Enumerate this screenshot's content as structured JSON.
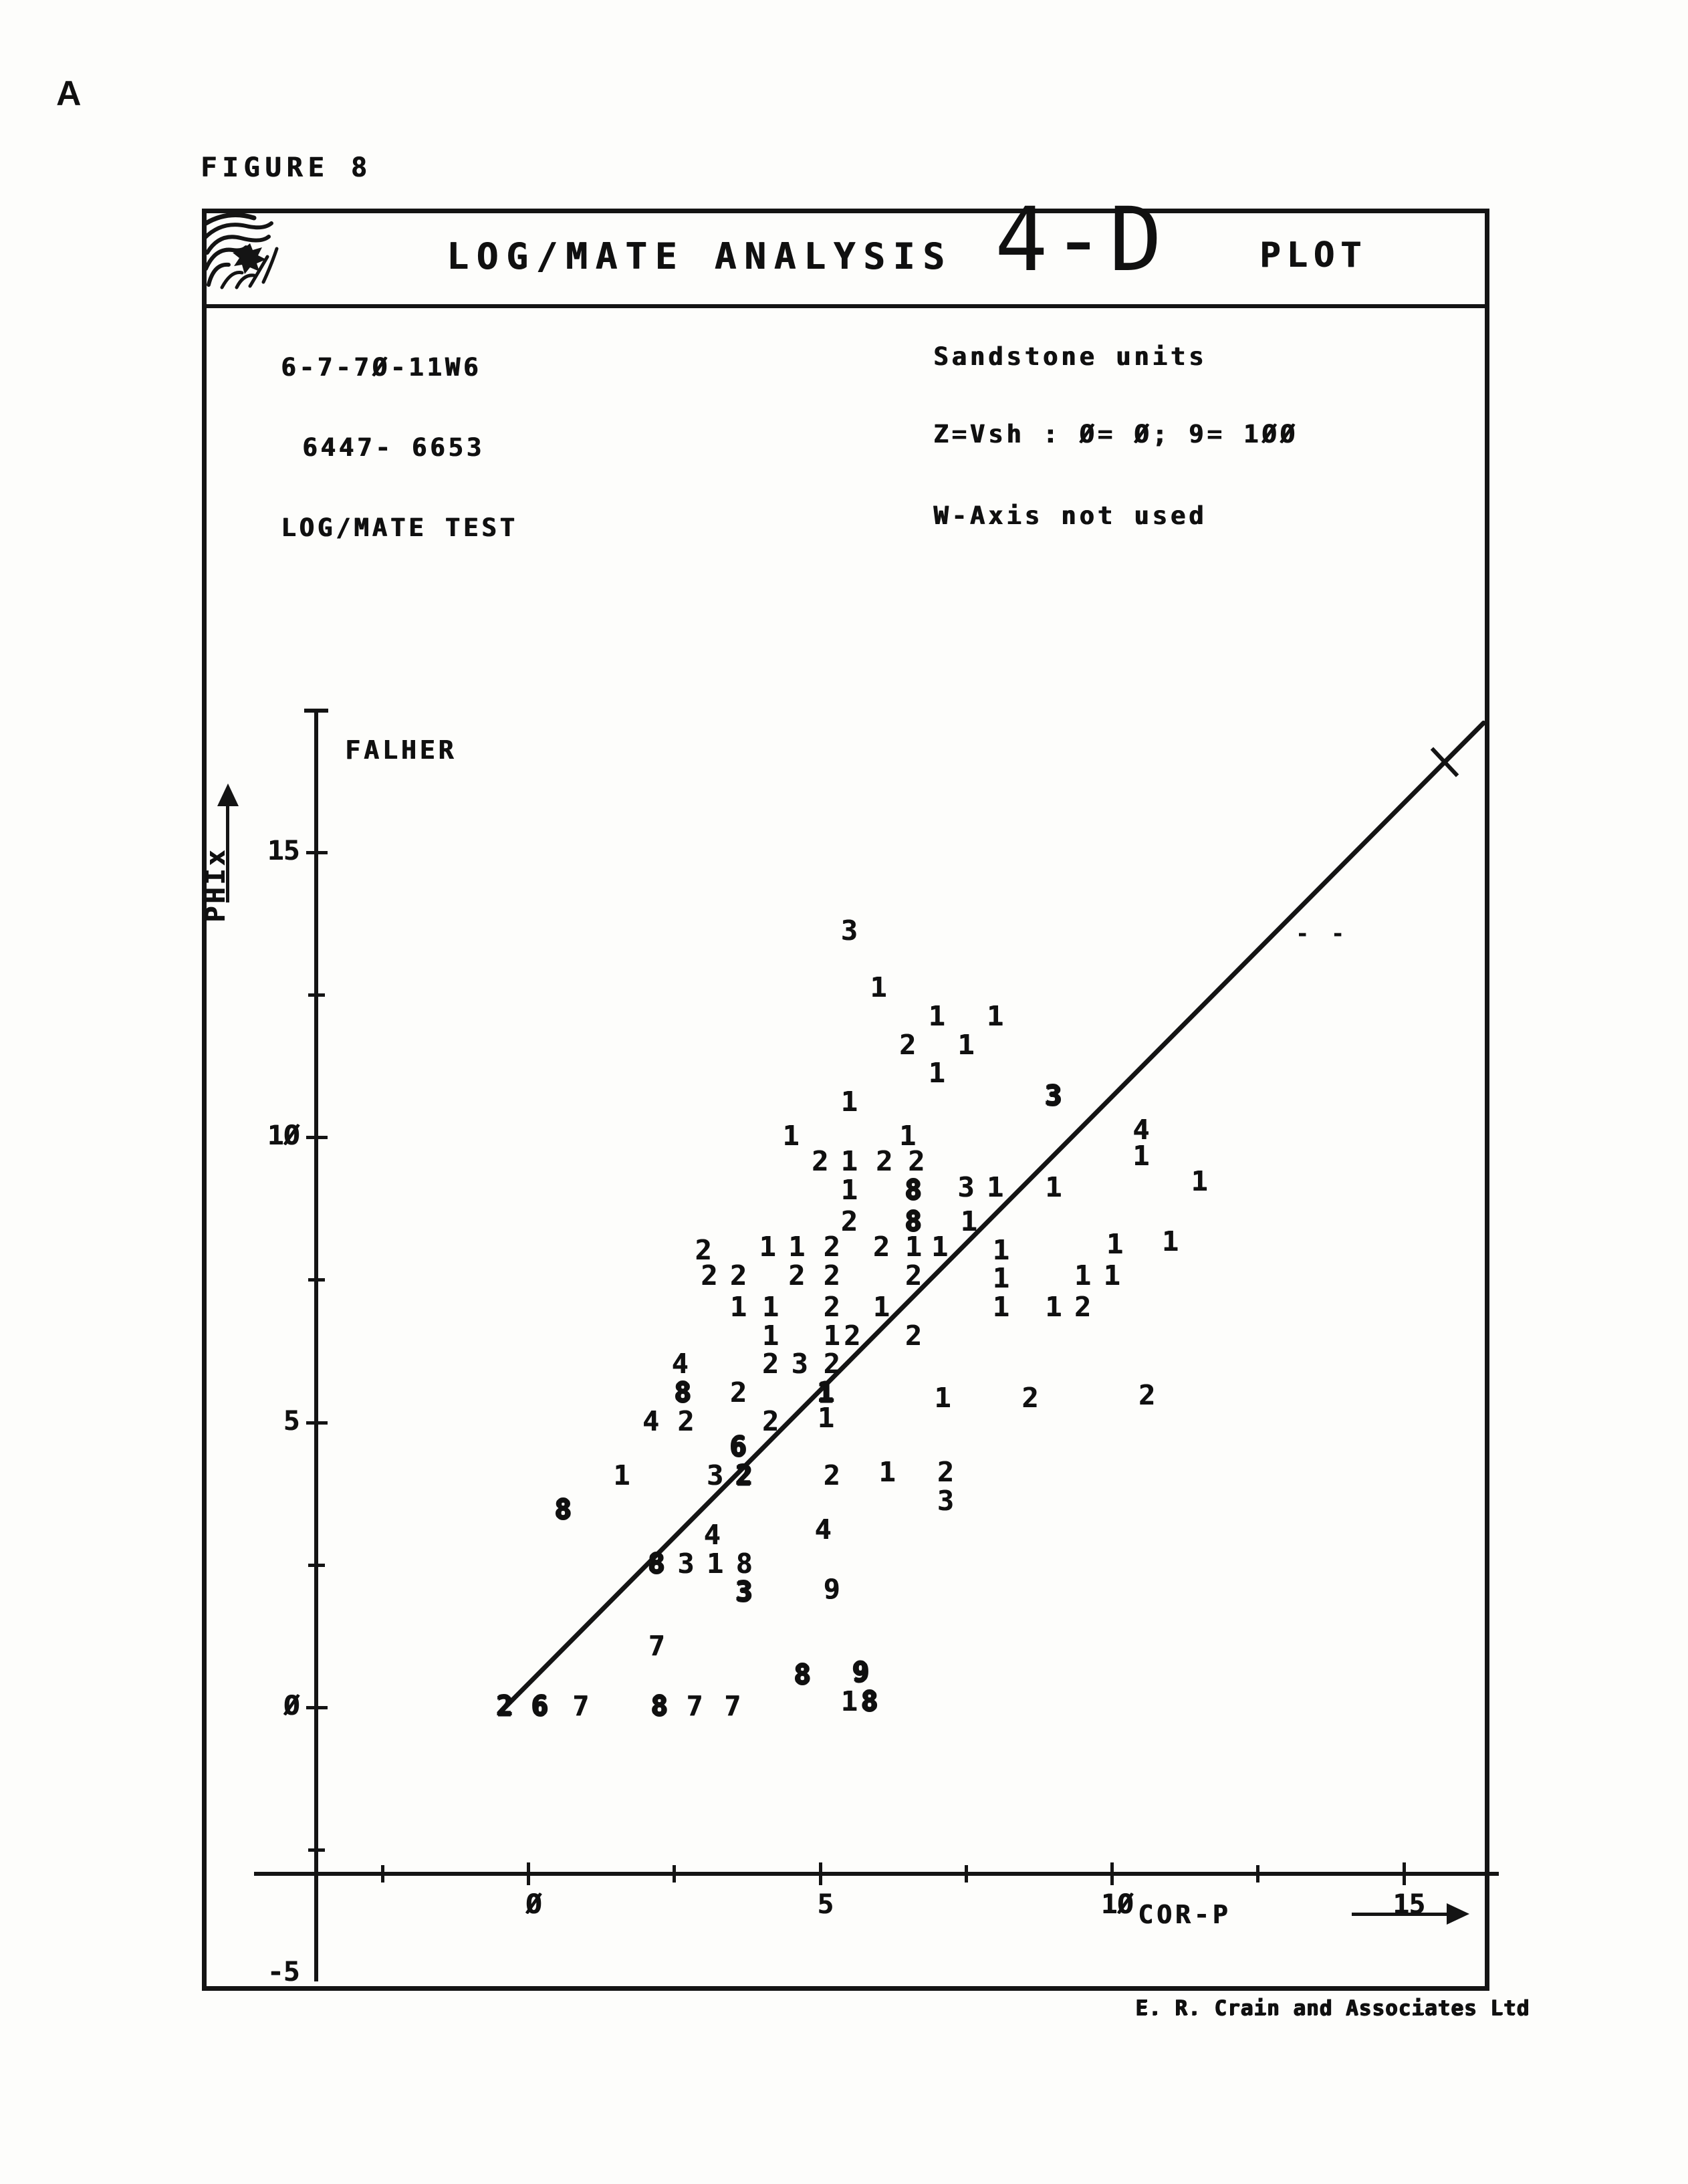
{
  "page": {
    "corner_label": "A",
    "figure_label": "FIGURE 8"
  },
  "header": {
    "title_left": "LOG/MATE ANALYSIS",
    "title_mid": "4-D",
    "title_right": "PLOT",
    "logo_icon": "scribble-stamp-icon"
  },
  "info": {
    "well_location": "6-7-7Ø-11W6",
    "depth_interval": "6447- 6653",
    "test_name": "LOG/MATE TEST",
    "lithology": "Sandstone units",
    "z_legend": "Z=Vsh : Ø= Ø; 9= 1ØØ",
    "w_axis_note": "W-Axis not used"
  },
  "footer": {
    "credit": "E. R. Crain and Associates Ltd"
  },
  "chart_data": {
    "type": "scatter",
    "title": "LOG/MATE ANALYSIS 4-D PLOT",
    "formation_label": "FALHER",
    "xlabel": "COR-P",
    "ylabel": "PHIx",
    "xlim": [
      -5,
      17
    ],
    "ylim": [
      -5,
      17.5
    ],
    "grid": false,
    "x_ticks": [
      0,
      5,
      10,
      15
    ],
    "x_tick_labels": [
      "Ø",
      "5",
      "1Ø",
      "15"
    ],
    "x_minor_ticks": [
      -2.5,
      2.5,
      7.5,
      12.5
    ],
    "y_ticks": [
      15,
      10,
      5,
      0,
      -5
    ],
    "y_tick_labels": [
      "15",
      "1Ø",
      "5",
      "Ø",
      "-5"
    ],
    "y_minor_ticks": [
      12.5,
      7.5,
      2.5,
      -2.5
    ],
    "marker_meaning": "digit = Z value (Vsh class, 0=0%, 9=100%); bold = overstruck multiple points",
    "regression_line": {
      "x1": -0.5,
      "y1": -0.1,
      "x2": 16.4,
      "y2": 17.3
    },
    "line_end_tick_x": 15.7,
    "stray_mark": {
      "x": 13.15,
      "y": 13.8,
      "text": "- -"
    },
    "points": [
      [
        5.5,
        13.6,
        "3"
      ],
      [
        6.0,
        12.6,
        "1"
      ],
      [
        7.0,
        12.1,
        "1"
      ],
      [
        8.0,
        12.1,
        "1"
      ],
      [
        6.5,
        11.6,
        "2"
      ],
      [
        7.5,
        11.6,
        "1"
      ],
      [
        7.0,
        11.1,
        "1"
      ],
      [
        5.5,
        10.6,
        "1"
      ],
      [
        9.0,
        10.7,
        "3",
        1
      ],
      [
        4.5,
        10.0,
        "1"
      ],
      [
        6.5,
        10.0,
        "1"
      ],
      [
        10.5,
        10.1,
        "4"
      ],
      [
        10.5,
        9.65,
        "1"
      ],
      [
        11.5,
        9.2,
        "1"
      ],
      [
        5.0,
        9.55,
        "2"
      ],
      [
        5.5,
        9.55,
        "1"
      ],
      [
        6.1,
        9.55,
        "2"
      ],
      [
        6.65,
        9.55,
        "2"
      ],
      [
        5.5,
        9.05,
        "1"
      ],
      [
        6.6,
        9.05,
        "8",
        1
      ],
      [
        7.5,
        9.1,
        "3"
      ],
      [
        8.0,
        9.1,
        "1"
      ],
      [
        9.0,
        9.1,
        "1"
      ],
      [
        5.5,
        8.5,
        "2"
      ],
      [
        6.6,
        8.5,
        "8",
        1
      ],
      [
        7.55,
        8.5,
        "1"
      ],
      [
        3.0,
        8.0,
        "2"
      ],
      [
        4.1,
        8.05,
        "1"
      ],
      [
        4.6,
        8.05,
        "1"
      ],
      [
        5.2,
        8.05,
        "2"
      ],
      [
        6.05,
        8.05,
        "2"
      ],
      [
        6.6,
        8.05,
        "1"
      ],
      [
        7.05,
        8.05,
        "1"
      ],
      [
        8.1,
        8.0,
        "1"
      ],
      [
        10.05,
        8.1,
        "1"
      ],
      [
        11.0,
        8.15,
        "1"
      ],
      [
        3.1,
        7.55,
        "2"
      ],
      [
        3.6,
        7.55,
        "2"
      ],
      [
        4.6,
        7.55,
        "2"
      ],
      [
        5.2,
        7.55,
        "2"
      ],
      [
        6.6,
        7.55,
        "2"
      ],
      [
        8.1,
        7.5,
        "1"
      ],
      [
        9.5,
        7.55,
        "1"
      ],
      [
        10.0,
        7.55,
        "1"
      ],
      [
        3.6,
        7.0,
        "1"
      ],
      [
        4.15,
        7.0,
        "1"
      ],
      [
        5.2,
        7.0,
        "2"
      ],
      [
        6.05,
        7.0,
        "1"
      ],
      [
        8.1,
        7.0,
        "1"
      ],
      [
        9.0,
        7.0,
        "1"
      ],
      [
        9.5,
        7.0,
        "2"
      ],
      [
        4.15,
        6.5,
        "1"
      ],
      [
        5.2,
        6.5,
        "1"
      ],
      [
        5.55,
        6.5,
        "2"
      ],
      [
        6.6,
        6.5,
        "2"
      ],
      [
        2.6,
        6.0,
        "4"
      ],
      [
        4.15,
        6.0,
        "2"
      ],
      [
        4.65,
        6.0,
        "3"
      ],
      [
        5.2,
        6.0,
        "2"
      ],
      [
        2.65,
        5.5,
        "8",
        1
      ],
      [
        3.6,
        5.5,
        "2"
      ],
      [
        5.1,
        5.5,
        "1",
        1
      ],
      [
        7.1,
        5.4,
        "1"
      ],
      [
        8.6,
        5.4,
        "2"
      ],
      [
        10.6,
        5.45,
        "2"
      ],
      [
        2.1,
        5.0,
        "4"
      ],
      [
        2.7,
        5.0,
        "2"
      ],
      [
        4.15,
        5.0,
        "2"
      ],
      [
        5.1,
        5.05,
        "1"
      ],
      [
        3.6,
        4.55,
        "6",
        1
      ],
      [
        1.6,
        4.05,
        "1"
      ],
      [
        3.2,
        4.05,
        "3"
      ],
      [
        3.7,
        4.05,
        "2",
        1
      ],
      [
        5.2,
        4.05,
        "2"
      ],
      [
        6.15,
        4.1,
        "1"
      ],
      [
        7.15,
        4.1,
        "2"
      ],
      [
        7.15,
        3.6,
        "3"
      ],
      [
        0.6,
        3.45,
        "8",
        1
      ],
      [
        3.15,
        3.0,
        "4"
      ],
      [
        5.05,
        3.1,
        "4"
      ],
      [
        2.2,
        2.5,
        "8",
        1
      ],
      [
        2.7,
        2.5,
        "3"
      ],
      [
        3.2,
        2.5,
        "1"
      ],
      [
        3.7,
        2.5,
        "8"
      ],
      [
        3.7,
        2.0,
        "3",
        1
      ],
      [
        5.2,
        2.05,
        "9"
      ],
      [
        2.2,
        1.05,
        "7"
      ],
      [
        4.7,
        0.55,
        "8",
        1
      ],
      [
        5.7,
        0.6,
        "9",
        1
      ],
      [
        -0.4,
        0.0,
        "2",
        1
      ],
      [
        0.2,
        0.0,
        "6",
        1
      ],
      [
        0.9,
        0.0,
        "7"
      ],
      [
        2.25,
        0.0,
        "8",
        1
      ],
      [
        2.85,
        0.0,
        "7"
      ],
      [
        3.5,
        0.0,
        "7"
      ],
      [
        5.5,
        0.08,
        "1"
      ],
      [
        5.85,
        0.08,
        "8",
        1
      ]
    ]
  }
}
